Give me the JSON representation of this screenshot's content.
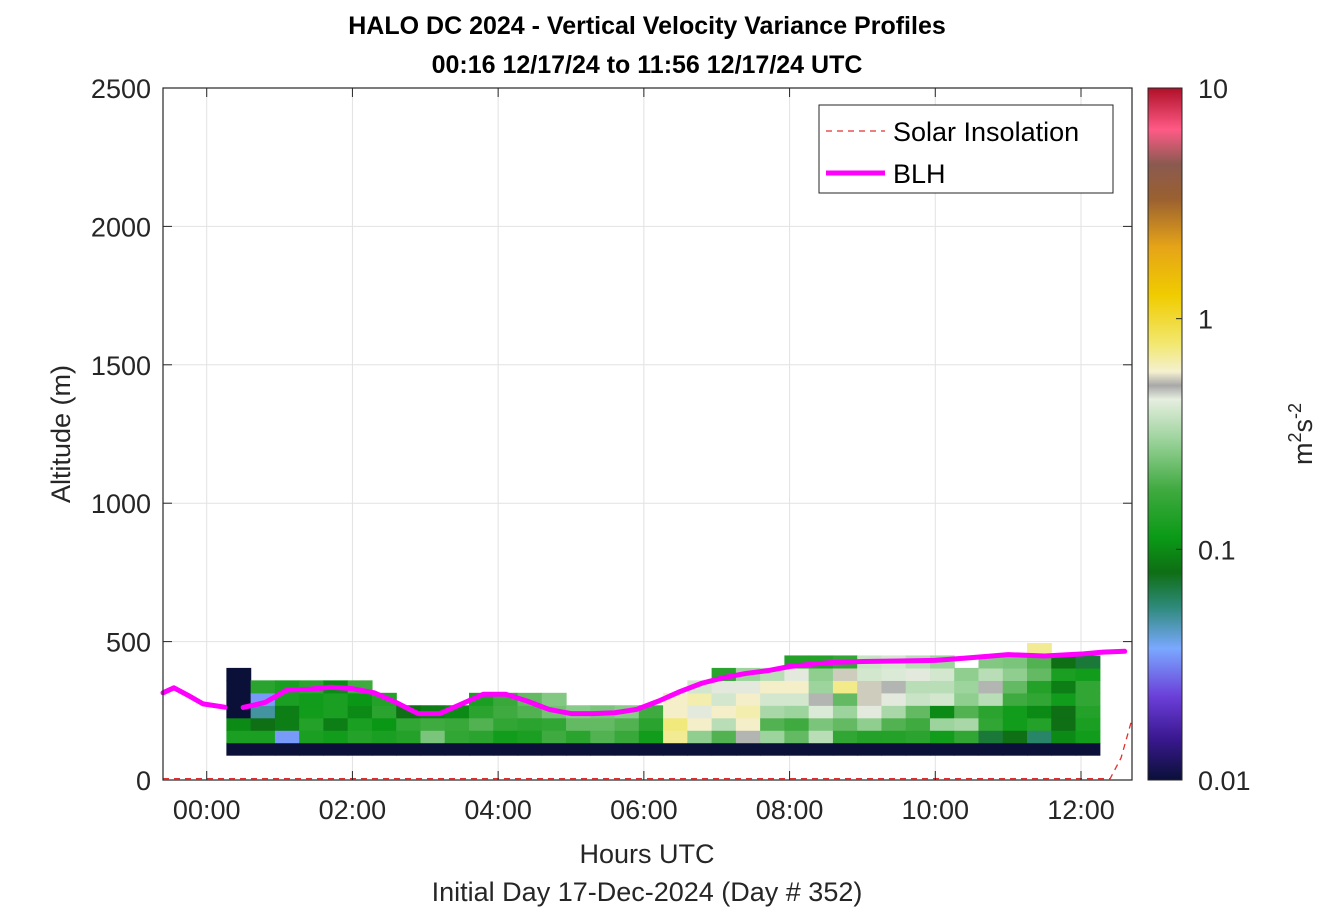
{
  "chart_data": {
    "type": "heatmap",
    "title_line1": "HALO DC 2024 - Vertical Velocity Variance Profiles",
    "title_line2": "00:16 12/17/24 to 11:56 12/17/24  UTC",
    "xlabel": "Hours UTC",
    "xlabel2": "Initial Day 17-Dec-2024 (Day # 352)",
    "ylabel": "Altitude (m)",
    "x_unit": "hours UTC",
    "xlim": [
      -0.6,
      12.7
    ],
    "ylim": [
      0,
      2500
    ],
    "x_ticks": [
      {
        "value": 0,
        "label": "00:00"
      },
      {
        "value": 2,
        "label": "02:00"
      },
      {
        "value": 4,
        "label": "04:00"
      },
      {
        "value": 6,
        "label": "06:00"
      },
      {
        "value": 8,
        "label": "08:00"
      },
      {
        "value": 10,
        "label": "10:00"
      },
      {
        "value": 12,
        "label": "12:00"
      }
    ],
    "y_ticks": [
      {
        "value": 0,
        "label": "0"
      },
      {
        "value": 500,
        "label": "500"
      },
      {
        "value": 1000,
        "label": "1000"
      },
      {
        "value": 1500,
        "label": "1500"
      },
      {
        "value": 2000,
        "label": "2000"
      },
      {
        "value": 2500,
        "label": "2500"
      }
    ],
    "grid": true,
    "colorbar": {
      "scale": "log",
      "range": [
        0.01,
        10
      ],
      "unit": "m",
      "unit_exp1": "2",
      "unit_mid": "s",
      "unit_exp2": "-2",
      "ticks": [
        {
          "value": 0.01,
          "label": "0.01"
        },
        {
          "value": 0.1,
          "label": "0.1"
        },
        {
          "value": 1,
          "label": "1"
        },
        {
          "value": 10,
          "label": "10"
        }
      ]
    },
    "heatmap": {
      "x_start": 0.27,
      "x_step": 0.333,
      "y_bottom": 90,
      "y_step": 45,
      "bottom_row_value": 0.01,
      "columns": [
        [
          0.01,
          0.13,
          0.1,
          0.01,
          0.01,
          0.01,
          0.01
        ],
        [
          0.01,
          0.13,
          0.08,
          0.05,
          0.035,
          0.15
        ],
        [
          0.01,
          0.035,
          0.09,
          0.09,
          0.13,
          0.13
        ],
        [
          0.01,
          0.13,
          0.14,
          0.12,
          0.12,
          0.15
        ],
        [
          0.01,
          0.12,
          0.09,
          0.13,
          0.13,
          0.1
        ],
        [
          0.01,
          0.14,
          0.13,
          0.1,
          0.11,
          0.18
        ],
        [
          0.01,
          0.13,
          0.11,
          0.15,
          0.14
        ],
        [
          0.01,
          0.14,
          0.16,
          0.08
        ],
        [
          0.01,
          0.25,
          0.18,
          0.09
        ],
        [
          0.01,
          0.16,
          0.17,
          0.1
        ],
        [
          0.01,
          0.15,
          0.2,
          0.15,
          0.13
        ],
        [
          0.01,
          0.12,
          0.16,
          0.18,
          0.17
        ],
        [
          0.01,
          0.13,
          0.15,
          0.2,
          0.22
        ],
        [
          0.01,
          0.18,
          0.16,
          0.24,
          0.26
        ],
        [
          0.01,
          0.15,
          0.22,
          0.27
        ],
        [
          0.01,
          0.2,
          0.22,
          0.25
        ],
        [
          0.01,
          0.17,
          0.2,
          0.27
        ],
        [
          0.01,
          0.12,
          0.15,
          0.18
        ],
        [
          0.01,
          0.7,
          0.75,
          0.6,
          0.6
        ],
        [
          0.01,
          0.28,
          0.6,
          0.45,
          0.65,
          0.4
        ],
        [
          0.01,
          0.2,
          0.35,
          0.6,
          0.4,
          0.45,
          0.15
        ],
        [
          0.01,
          0.5,
          0.6,
          0.65,
          0.6,
          0.45,
          0.3
        ],
        [
          0.01,
          0.3,
          0.2,
          0.32,
          0.4,
          0.6,
          0.35
        ],
        [
          0.01,
          0.22,
          0.18,
          0.3,
          0.4,
          0.6,
          0.45,
          0.14
        ],
        [
          0.01,
          0.35,
          0.25,
          0.42,
          0.5,
          0.3,
          0.28,
          0.14
        ],
        [
          0.01,
          0.16,
          0.22,
          0.3,
          0.22,
          0.72,
          0.55,
          0.16
        ],
        [
          0.01,
          0.14,
          0.28,
          0.45,
          0.55,
          0.55,
          0.4,
          0.38
        ],
        [
          0.01,
          0.14,
          0.2,
          0.32,
          0.45,
          0.5,
          0.42,
          0.4
        ],
        [
          0.01,
          0.15,
          0.18,
          0.22,
          0.38,
          0.35,
          0.45,
          0.35
        ],
        [
          0.01,
          0.12,
          0.3,
          0.1,
          0.4,
          0.35,
          0.4,
          0.3
        ],
        [
          0.01,
          0.16,
          0.32,
          0.2,
          0.28,
          0.3,
          0.28
        ],
        [
          0.01,
          0.07,
          0.16,
          0.15,
          0.35,
          0.5,
          0.35,
          0.26
        ],
        [
          0.01,
          0.08,
          0.12,
          0.12,
          0.18,
          0.22,
          0.28,
          0.25
        ],
        [
          0.01,
          0.06,
          0.14,
          0.1,
          0.16,
          0.14,
          0.22,
          0.2,
          0.7
        ],
        [
          0.01,
          0.1,
          0.08,
          0.08,
          0.12,
          0.09,
          0.13,
          0.08
        ],
        [
          0.01,
          0.12,
          0.13,
          0.14,
          0.16,
          0.16,
          0.12,
          0.07
        ]
      ]
    },
    "series": [
      {
        "name": "Solar Insolation",
        "style": "dashed",
        "color": "#e03030",
        "points": [
          [
            -0.6,
            5
          ],
          [
            12.4,
            5
          ],
          [
            12.55,
            80
          ],
          [
            12.7,
            220
          ]
        ]
      },
      {
        "name": "BLH",
        "style": "solid",
        "color": "#ff00ff",
        "segments": [
          [
            [
              -0.6,
              315
            ],
            [
              -0.45,
              333
            ],
            [
              -0.25,
              305
            ],
            [
              -0.05,
              275
            ],
            [
              0.25,
              263
            ]
          ],
          [
            [
              0.5,
              262
            ],
            [
              0.8,
              280
            ],
            [
              1.1,
              325
            ],
            [
              1.4,
              328
            ],
            [
              1.7,
              335
            ],
            [
              2.0,
              330
            ],
            [
              2.3,
              315
            ],
            [
              2.6,
              280
            ],
            [
              2.9,
              240
            ],
            [
              3.2,
              240
            ],
            [
              3.5,
              275
            ],
            [
              3.8,
              310
            ],
            [
              4.1,
              310
            ],
            [
              4.4,
              285
            ],
            [
              4.7,
              255
            ],
            [
              5.0,
              240
            ],
            [
              5.3,
              240
            ],
            [
              5.6,
              243
            ],
            [
              5.9,
              255
            ],
            [
              6.2,
              285
            ],
            [
              6.5,
              320
            ],
            [
              6.8,
              350
            ],
            [
              7.1,
              370
            ],
            [
              7.4,
              385
            ],
            [
              7.7,
              395
            ],
            [
              8.0,
              410
            ],
            [
              8.3,
              418
            ],
            [
              8.6,
              425
            ],
            [
              9.0,
              428
            ],
            [
              9.5,
              430
            ],
            [
              10.0,
              432
            ],
            [
              10.5,
              442
            ],
            [
              11.0,
              453
            ],
            [
              11.5,
              448
            ],
            [
              12.0,
              455
            ],
            [
              12.3,
              462
            ],
            [
              12.6,
              465
            ]
          ]
        ]
      }
    ],
    "legend": {
      "position": "top-right",
      "entries": [
        "Solar Insolation",
        "BLH"
      ]
    },
    "colors": {
      "blh": "#ff00ff",
      "solar": "#e03030",
      "grid": "#e2e2e2",
      "axes": "#262626"
    }
  }
}
